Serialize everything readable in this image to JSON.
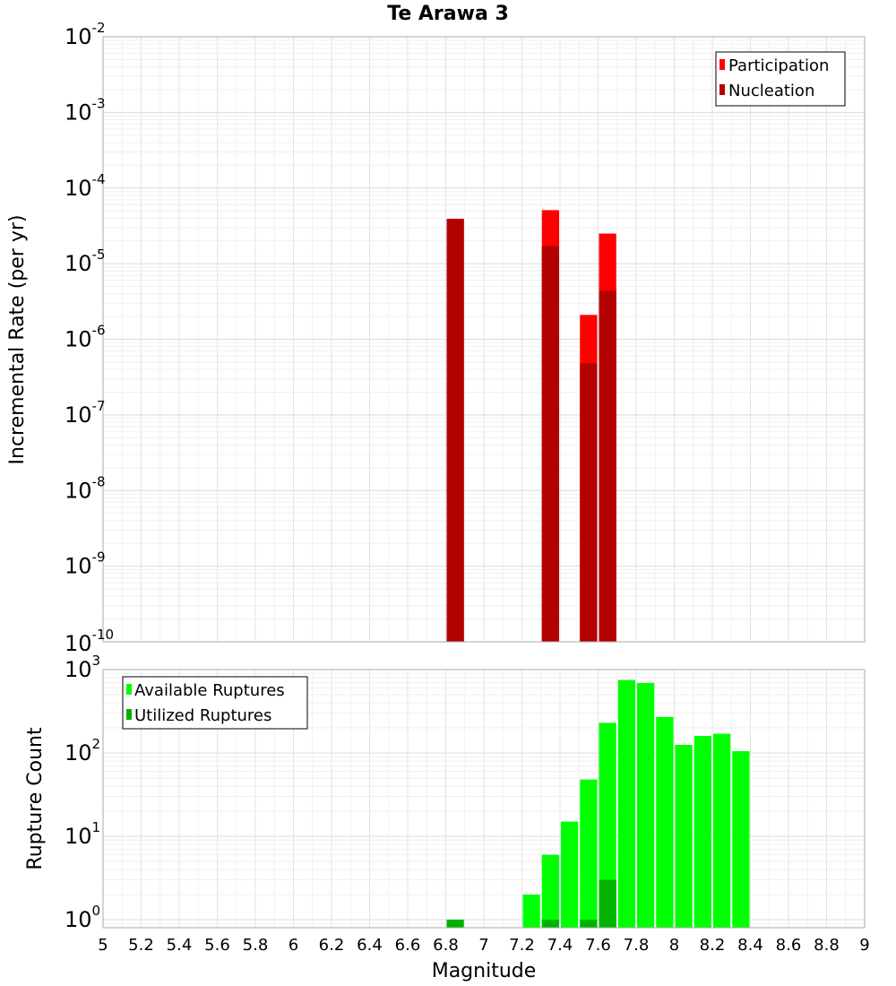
{
  "chart_data": {
    "title": "Te Arawa 3",
    "xlabel": "Magnitude",
    "xlim": [
      5,
      9
    ],
    "xticks": [
      "5",
      "5.2",
      "5.4",
      "5.6",
      "5.8",
      "6",
      "6.2",
      "6.4",
      "6.6",
      "6.8",
      "7",
      "7.2",
      "7.4",
      "7.6",
      "7.8",
      "8",
      "8.2",
      "8.4",
      "8.6",
      "8.8",
      "9"
    ],
    "bin_width": 0.1,
    "panels": [
      {
        "type": "bar",
        "ylabel": "Incremental Rate (per yr)",
        "yscale": "log",
        "ylim": [
          1e-10,
          0.01
        ],
        "yticks": [
          {
            "base": "10",
            "exp": "-10",
            "value": 1e-10
          },
          {
            "base": "10",
            "exp": "-9",
            "value": 1e-09
          },
          {
            "base": "10",
            "exp": "-8",
            "value": 1e-08
          },
          {
            "base": "10",
            "exp": "-7",
            "value": 1e-07
          },
          {
            "base": "10",
            "exp": "-6",
            "value": 1e-06
          },
          {
            "base": "10",
            "exp": "-5",
            "value": 1e-05
          },
          {
            "base": "10",
            "exp": "-4",
            "value": 0.0001
          },
          {
            "base": "10",
            "exp": "-3",
            "value": 0.001
          },
          {
            "base": "10",
            "exp": "-2",
            "value": 0.01
          }
        ],
        "legend_position": "top-right",
        "series": [
          {
            "name": "Participation",
            "color": "#ff0000",
            "x": [
              6.85,
              7.35,
              7.55,
              7.65
            ],
            "values": [
              3.9e-05,
              5.1e-05,
              2.1e-06,
              2.5e-05
            ]
          },
          {
            "name": "Nucleation",
            "color": "#b30000",
            "x": [
              6.85,
              7.35,
              7.55,
              7.65
            ],
            "values": [
              3.9e-05,
              1.7e-05,
              4.8e-07,
              4.4e-06
            ]
          }
        ]
      },
      {
        "type": "bar",
        "ylabel": "Rupture Count",
        "yscale": "log",
        "ylim": [
          0.8,
          1000
        ],
        "yticks": [
          {
            "base": "10",
            "exp": "0",
            "value": 1
          },
          {
            "base": "10",
            "exp": "1",
            "value": 10
          },
          {
            "base": "10",
            "exp": "2",
            "value": 100
          },
          {
            "base": "10",
            "exp": "3",
            "value": 1000
          }
        ],
        "legend_position": "top-left",
        "series": [
          {
            "name": "Available Ruptures",
            "color": "#00ff00",
            "x": [
              7.25,
              7.35,
              7.45,
              7.55,
              7.65,
              7.75,
              7.85,
              7.95,
              8.05,
              8.15,
              8.25,
              8.35
            ],
            "values": [
              2,
              6,
              15,
              48,
              230,
              750,
              690,
              270,
              125,
              160,
              170,
              105
            ]
          },
          {
            "name": "Utilized Ruptures",
            "color": "#00b300",
            "x": [
              6.85,
              7.35,
              7.55,
              7.65
            ],
            "values": [
              1,
              1,
              1,
              3
            ]
          }
        ]
      }
    ]
  }
}
